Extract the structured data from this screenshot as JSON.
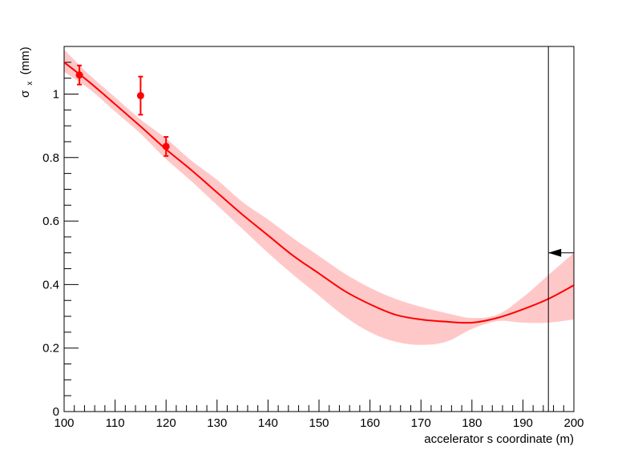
{
  "chart_data": {
    "type": "line",
    "title": "",
    "xlabel": "accelerator s coordinate (m)",
    "ylabel": "σ",
    "ylabel_sub": "x",
    "ylabel_unit": "(mm)",
    "xlim": [
      100,
      200
    ],
    "ylim": [
      0,
      1.15
    ],
    "grid": false,
    "x_ticks": [
      100,
      110,
      120,
      130,
      140,
      150,
      160,
      170,
      180,
      190,
      200
    ],
    "x_tick_labels": [
      "100",
      "110",
      "120",
      "130",
      "140",
      "150",
      "160",
      "170",
      "180",
      "190",
      "200"
    ],
    "y_ticks": [
      0,
      0.2,
      0.4,
      0.6,
      0.8,
      1.0
    ],
    "y_tick_labels": [
      "0",
      "0.2",
      "0.4",
      "0.6",
      "0.8",
      "1"
    ],
    "colors": {
      "fit": "#ff0000",
      "band": "#ffc8c8",
      "points": "#ff0000",
      "marker": "#000000"
    },
    "series": [
      {
        "kind": "fit-curve",
        "x": [
          100,
          105,
          110,
          115,
          120,
          125,
          130,
          135,
          140,
          145,
          150,
          155,
          160,
          165,
          170,
          175,
          180,
          185,
          190,
          195,
          200
        ],
        "y": [
          1.1,
          1.037,
          0.968,
          0.898,
          0.826,
          0.76,
          0.69,
          0.62,
          0.555,
          0.49,
          0.435,
          0.38,
          0.338,
          0.305,
          0.29,
          0.283,
          0.28,
          0.295,
          0.322,
          0.355,
          0.398
        ]
      },
      {
        "kind": "uncertainty-band",
        "x": [
          100,
          105,
          110,
          115,
          120,
          125,
          130,
          135,
          140,
          145,
          150,
          155,
          160,
          165,
          170,
          175,
          180,
          185,
          190,
          195,
          200
        ],
        "upper": [
          1.14,
          1.06,
          0.99,
          0.92,
          0.86,
          0.79,
          0.73,
          0.66,
          0.605,
          0.545,
          0.49,
          0.435,
          0.39,
          0.355,
          0.33,
          0.31,
          0.295,
          0.305,
          0.36,
          0.43,
          0.5
        ],
        "lower": [
          1.07,
          1.015,
          0.945,
          0.875,
          0.795,
          0.725,
          0.65,
          0.575,
          0.5,
          0.43,
          0.365,
          0.3,
          0.25,
          0.22,
          0.21,
          0.22,
          0.26,
          0.285,
          0.28,
          0.28,
          0.29
        ]
      },
      {
        "kind": "measurements",
        "x": [
          103,
          115,
          120
        ],
        "y": [
          1.06,
          0.995,
          0.835
        ],
        "err": [
          0.03,
          0.06,
          0.03
        ]
      }
    ],
    "marker": {
      "x": 195,
      "arrow_y": 0.5,
      "arrow_direction": "left"
    }
  }
}
